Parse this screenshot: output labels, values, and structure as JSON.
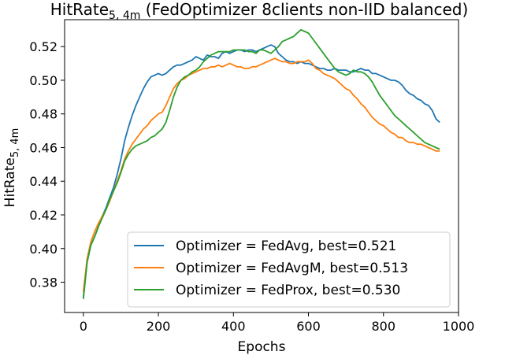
{
  "chart_data": {
    "type": "line",
    "title_main": "HitRate",
    "title_sub": "5, 4m",
    "title_rest": " (FedOptimizer 8clients non-IID balanced)",
    "xlabel": "Epochs",
    "ylabel_main": "HitRate",
    "ylabel_sub": "5, 4m",
    "xlim": [
      -50,
      1000
    ],
    "ylim": [
      0.362,
      0.536
    ],
    "xticks": [
      0,
      200,
      400,
      600,
      800,
      1000
    ],
    "xtick_labels": [
      "0",
      "200",
      "400",
      "600",
      "800",
      "1000"
    ],
    "yticks": [
      0.38,
      0.4,
      0.42,
      0.44,
      0.46,
      0.48,
      0.5,
      0.52
    ],
    "ytick_labels": [
      "0.38",
      "0.40",
      "0.42",
      "0.44",
      "0.46",
      "0.48",
      "0.50",
      "0.52"
    ],
    "legend_position": "lower-right",
    "series": [
      {
        "name": "FedAvg",
        "legend_label": "Optimizer = FedAvg, best=0.521",
        "color": "#1f77b4",
        "x": [
          0,
          10,
          20,
          30,
          40,
          50,
          60,
          70,
          80,
          90,
          100,
          110,
          120,
          130,
          140,
          150,
          160,
          170,
          180,
          190,
          200,
          210,
          220,
          230,
          240,
          250,
          260,
          270,
          280,
          290,
          300,
          310,
          320,
          330,
          340,
          350,
          360,
          370,
          380,
          390,
          400,
          410,
          420,
          430,
          440,
          450,
          460,
          470,
          480,
          490,
          500,
          510,
          520,
          530,
          540,
          550,
          560,
          570,
          580,
          590,
          600,
          610,
          620,
          630,
          640,
          650,
          660,
          670,
          680,
          690,
          700,
          710,
          720,
          730,
          740,
          750,
          760,
          770,
          780,
          790,
          800,
          810,
          820,
          830,
          840,
          850,
          860,
          870,
          880,
          890,
          900,
          910,
          920,
          930,
          940,
          950
        ],
        "y": [
          0.371,
          0.392,
          0.402,
          0.407,
          0.413,
          0.419,
          0.424,
          0.43,
          0.436,
          0.444,
          0.453,
          0.464,
          0.472,
          0.479,
          0.485,
          0.49,
          0.495,
          0.499,
          0.502,
          0.503,
          0.504,
          0.503,
          0.504,
          0.506,
          0.508,
          0.509,
          0.509,
          0.51,
          0.511,
          0.512,
          0.514,
          0.513,
          0.512,
          0.515,
          0.514,
          0.514,
          0.513,
          0.516,
          0.517,
          0.516,
          0.517,
          0.518,
          0.518,
          0.517,
          0.518,
          0.518,
          0.517,
          0.518,
          0.519,
          0.52,
          0.521,
          0.52,
          0.516,
          0.514,
          0.512,
          0.511,
          0.511,
          0.51,
          0.511,
          0.51,
          0.51,
          0.509,
          0.508,
          0.507,
          0.507,
          0.506,
          0.506,
          0.507,
          0.506,
          0.506,
          0.506,
          0.505,
          0.505,
          0.506,
          0.507,
          0.506,
          0.506,
          0.504,
          0.504,
          0.503,
          0.502,
          0.501,
          0.5,
          0.5,
          0.499,
          0.497,
          0.494,
          0.492,
          0.491,
          0.489,
          0.488,
          0.486,
          0.485,
          0.482,
          0.477,
          0.475
        ]
      },
      {
        "name": "FedAvgM",
        "legend_label": "Optimizer = FedAvgM, best=0.513",
        "color": "#ff7f0e",
        "x": [
          0,
          10,
          20,
          30,
          40,
          50,
          60,
          70,
          80,
          90,
          100,
          110,
          120,
          130,
          140,
          150,
          160,
          170,
          180,
          190,
          200,
          210,
          220,
          230,
          240,
          250,
          260,
          270,
          280,
          290,
          300,
          310,
          320,
          330,
          340,
          350,
          360,
          370,
          380,
          390,
          400,
          410,
          420,
          430,
          440,
          450,
          460,
          470,
          480,
          490,
          500,
          510,
          520,
          530,
          540,
          550,
          560,
          570,
          580,
          590,
          600,
          610,
          620,
          630,
          640,
          650,
          660,
          670,
          680,
          690,
          700,
          710,
          720,
          730,
          740,
          750,
          760,
          770,
          780,
          790,
          800,
          810,
          820,
          830,
          840,
          850,
          860,
          870,
          880,
          890,
          900,
          910,
          920,
          930,
          940,
          950
        ],
        "y": [
          0.374,
          0.394,
          0.404,
          0.41,
          0.415,
          0.419,
          0.423,
          0.428,
          0.434,
          0.44,
          0.446,
          0.453,
          0.458,
          0.462,
          0.465,
          0.468,
          0.471,
          0.473,
          0.476,
          0.478,
          0.48,
          0.481,
          0.485,
          0.49,
          0.495,
          0.498,
          0.5,
          0.501,
          0.503,
          0.504,
          0.505,
          0.506,
          0.507,
          0.507,
          0.508,
          0.508,
          0.509,
          0.508,
          0.509,
          0.51,
          0.509,
          0.508,
          0.508,
          0.507,
          0.507,
          0.508,
          0.508,
          0.509,
          0.51,
          0.511,
          0.512,
          0.513,
          0.512,
          0.511,
          0.511,
          0.51,
          0.51,
          0.511,
          0.511,
          0.511,
          0.512,
          0.51,
          0.507,
          0.506,
          0.504,
          0.503,
          0.502,
          0.501,
          0.499,
          0.497,
          0.495,
          0.494,
          0.491,
          0.489,
          0.486,
          0.484,
          0.481,
          0.478,
          0.476,
          0.474,
          0.473,
          0.471,
          0.469,
          0.468,
          0.466,
          0.466,
          0.464,
          0.463,
          0.463,
          0.462,
          0.462,
          0.461,
          0.46,
          0.459,
          0.458,
          0.458
        ]
      },
      {
        "name": "FedProx",
        "legend_label": "Optimizer = FedProx, best=0.530",
        "color": "#2ca02c",
        "x": [
          0,
          10,
          20,
          30,
          40,
          50,
          60,
          70,
          80,
          90,
          100,
          110,
          120,
          130,
          140,
          150,
          160,
          170,
          180,
          190,
          200,
          210,
          220,
          230,
          240,
          250,
          260,
          270,
          280,
          290,
          300,
          310,
          320,
          330,
          340,
          350,
          360,
          370,
          380,
          390,
          400,
          410,
          420,
          430,
          440,
          450,
          460,
          470,
          480,
          490,
          500,
          510,
          520,
          530,
          540,
          550,
          560,
          570,
          580,
          590,
          600,
          610,
          620,
          630,
          640,
          650,
          660,
          670,
          680,
          690,
          700,
          710,
          720,
          730,
          740,
          750,
          760,
          770,
          780,
          790,
          800,
          810,
          820,
          830,
          840,
          850,
          860,
          870,
          880,
          890,
          900,
          910,
          920,
          930,
          940,
          950
        ],
        "y": [
          0.37,
          0.392,
          0.402,
          0.407,
          0.413,
          0.418,
          0.423,
          0.429,
          0.434,
          0.439,
          0.445,
          0.452,
          0.456,
          0.459,
          0.461,
          0.462,
          0.463,
          0.464,
          0.466,
          0.467,
          0.469,
          0.471,
          0.475,
          0.482,
          0.49,
          0.496,
          0.5,
          0.502,
          0.503,
          0.505,
          0.506,
          0.508,
          0.511,
          0.513,
          0.515,
          0.516,
          0.517,
          0.517,
          0.517,
          0.517,
          0.518,
          0.518,
          0.518,
          0.518,
          0.517,
          0.517,
          0.516,
          0.518,
          0.518,
          0.517,
          0.516,
          0.518,
          0.52,
          0.523,
          0.524,
          0.525,
          0.526,
          0.528,
          0.53,
          0.529,
          0.528,
          0.525,
          0.522,
          0.519,
          0.516,
          0.513,
          0.51,
          0.507,
          0.505,
          0.504,
          0.503,
          0.504,
          0.506,
          0.505,
          0.505,
          0.504,
          0.502,
          0.499,
          0.495,
          0.491,
          0.488,
          0.485,
          0.482,
          0.479,
          0.477,
          0.475,
          0.473,
          0.471,
          0.469,
          0.467,
          0.465,
          0.463,
          0.462,
          0.461,
          0.46,
          0.459
        ]
      }
    ]
  }
}
